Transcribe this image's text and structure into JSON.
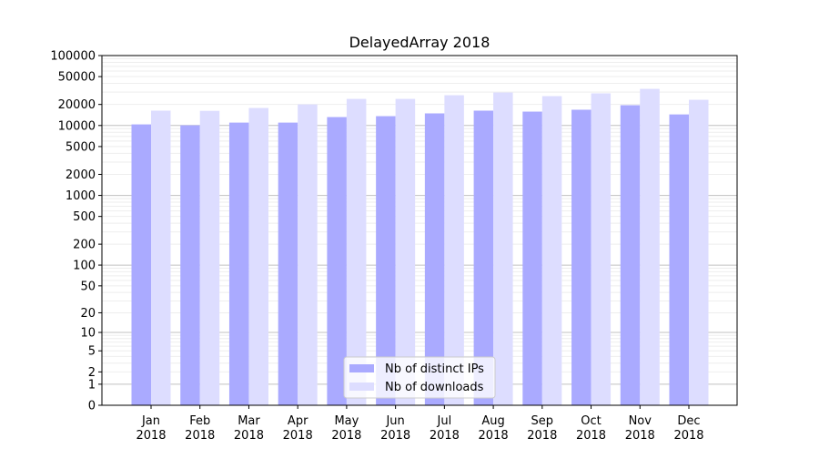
{
  "chart_data": {
    "type": "bar",
    "title": "DelayedArray 2018",
    "xlabel": "",
    "ylabel": "",
    "yscale": "symlog (log10(1+y))",
    "ylim": [
      0,
      100000
    ],
    "grid": true,
    "legend_position": "bottom-center",
    "categories": [
      "Jan\n2018",
      "Feb\n2018",
      "Mar\n2018",
      "Apr\n2018",
      "May\n2018",
      "Jun\n2018",
      "Jul\n2018",
      "Aug\n2018",
      "Sep\n2018",
      "Oct\n2018",
      "Nov\n2018",
      "Dec\n2018"
    ],
    "yticks": [
      0,
      1,
      2,
      5,
      10,
      20,
      50,
      100,
      200,
      500,
      1000,
      2000,
      5000,
      10000,
      20000,
      50000,
      100000
    ],
    "series": [
      {
        "name": "Nb of distinct IPs",
        "color": "#aaaaff",
        "values": [
          10370,
          10060,
          11000,
          11000,
          13200,
          13600,
          14900,
          16300,
          15800,
          16800,
          19500,
          14400
        ]
      },
      {
        "name": "Nb of downloads",
        "color": "#ddddff",
        "values": [
          16300,
          16200,
          17800,
          20000,
          24000,
          24000,
          27100,
          29600,
          26300,
          28800,
          33400,
          23300
        ]
      }
    ]
  }
}
